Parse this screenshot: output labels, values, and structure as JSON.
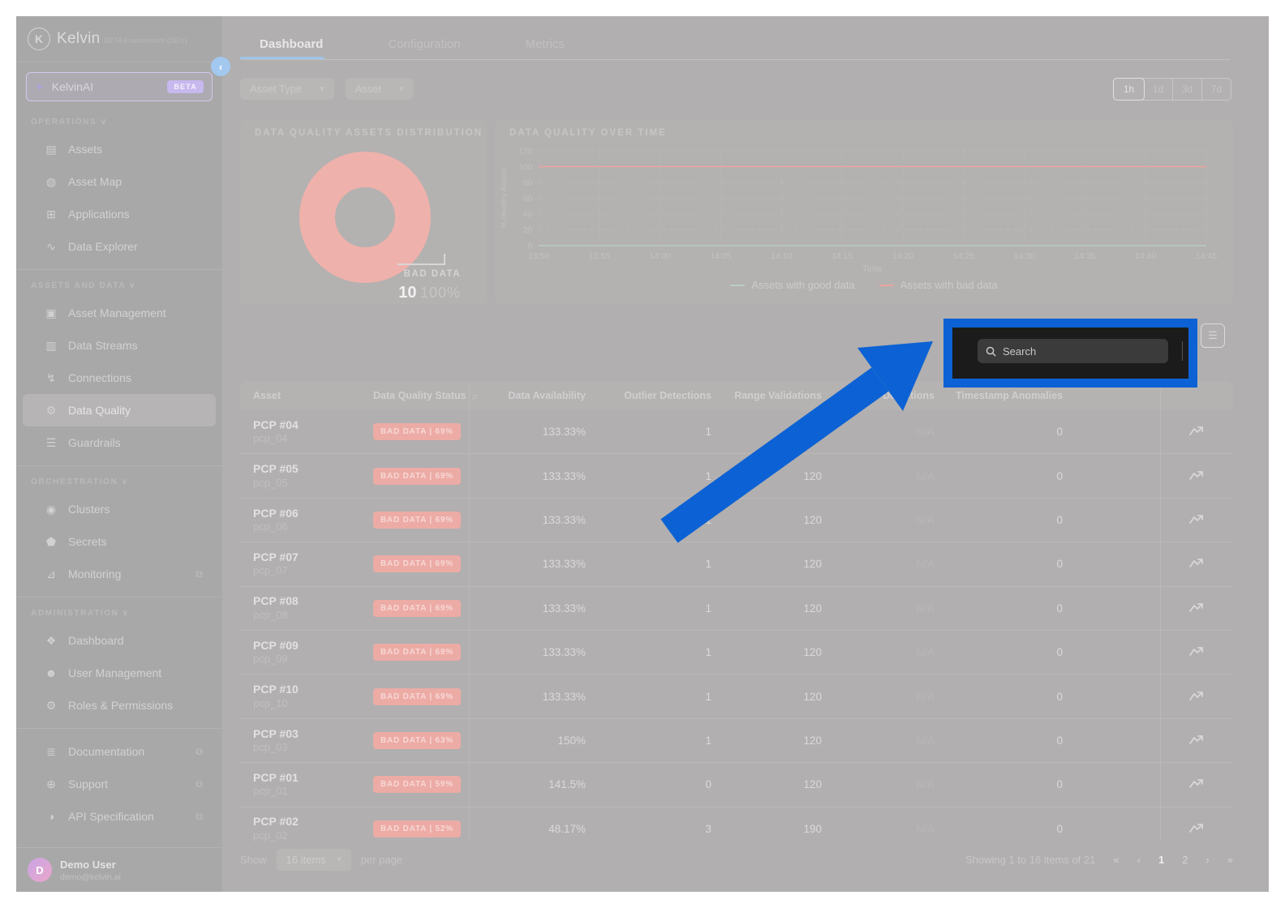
{
  "colors": {
    "annotation_blue": "#0c62d4",
    "bad_data_pink": "#efb1ab",
    "good_data_green": "#b8cec3",
    "bad_line_red": "#e9a59f",
    "beta_purple": "#c7b8ee",
    "tab_accent_blue": "#9fc4e8"
  },
  "icons": {
    "chevron-down-icon": "▾",
    "section-chevron-icon": "∨",
    "collapse-icon": "‹",
    "external-link-icon": "⧉",
    "sort-icon": "↓↑",
    "assets-icon": "▤",
    "asset-map-icon": "◍",
    "applications-icon": "⊞",
    "data-explorer-icon": "∿",
    "asset-management-icon": "▣",
    "data-streams-icon": "▥",
    "connections-icon": "↯",
    "data-quality-icon": "⚙",
    "guardrails-icon": "☰",
    "clusters-icon": "◉",
    "secrets-icon": "⬟",
    "monitoring-icon": "⊿",
    "dashboard-icon": "❖",
    "user-management-icon": "☻",
    "roles-permissions-icon": "⚙",
    "documentation-icon": "≣",
    "support-icon": "⊕",
    "api-specification-icon": "◑",
    "first-page-icon": "«",
    "prev-page-icon": "‹",
    "next-page-icon": "›",
    "last-page-icon": "»",
    "list-view-icon": "☰",
    "lines-view-icon": "≡"
  },
  "sidebar": {
    "logo_text": "Kelvin",
    "logo_initial": "K",
    "env_label": "BETA Environment (DEV)",
    "ai_item": {
      "label": "KelvinAI",
      "badge": "BETA",
      "icon": "sparkle-icon",
      "glyph": "✦"
    },
    "sections": [
      {
        "label": "OPERATIONS",
        "divided": false,
        "items": [
          {
            "label": "Assets",
            "icon": "assets-icon"
          },
          {
            "label": "Asset Map",
            "icon": "asset-map-icon"
          },
          {
            "label": "Applications",
            "icon": "applications-icon"
          },
          {
            "label": "Data Explorer",
            "icon": "data-explorer-icon"
          }
        ]
      },
      {
        "label": "ASSETS AND DATA",
        "divided": true,
        "items": [
          {
            "label": "Asset Management",
            "icon": "asset-management-icon"
          },
          {
            "label": "Data Streams",
            "icon": "data-streams-icon"
          },
          {
            "label": "Connections",
            "icon": "connections-icon"
          },
          {
            "label": "Data Quality",
            "icon": "data-quality-icon",
            "active": true
          },
          {
            "label": "Guardrails",
            "icon": "guardrails-icon"
          }
        ]
      },
      {
        "label": "ORCHESTRATION",
        "divided": true,
        "items": [
          {
            "label": "Clusters",
            "icon": "clusters-icon"
          },
          {
            "label": "Secrets",
            "icon": "secrets-icon"
          },
          {
            "label": "Monitoring",
            "icon": "monitoring-icon",
            "external": true
          }
        ]
      },
      {
        "label": "ADMINISTRATION",
        "divided": true,
        "items": [
          {
            "label": "Dashboard",
            "icon": "dashboard-icon"
          },
          {
            "label": "User Management",
            "icon": "user-management-icon"
          },
          {
            "label": "Roles & Permissions",
            "icon": "roles-permissions-icon"
          }
        ]
      },
      {
        "label": "",
        "divided": true,
        "items": [
          {
            "label": "Documentation",
            "icon": "documentation-icon",
            "external": true
          },
          {
            "label": "Support",
            "icon": "support-icon",
            "external": true
          },
          {
            "label": "API Specification",
            "icon": "api-specification-icon",
            "external": true
          }
        ]
      }
    ],
    "user": {
      "name": "Demo User",
      "email": "demo@kelvin.ai",
      "avatar_initial": "D"
    }
  },
  "header": {
    "tabs": [
      {
        "label": "Dashboard",
        "active": true
      },
      {
        "label": "Configuration",
        "active": false
      },
      {
        "label": "Metrics",
        "active": false
      }
    ],
    "filters": [
      {
        "label": "Asset Type"
      },
      {
        "label": "Asset"
      }
    ],
    "time_ranges": [
      {
        "label": "1h",
        "active": true
      },
      {
        "label": "1d",
        "active": false
      },
      {
        "label": "3d",
        "active": false
      },
      {
        "label": "7d",
        "active": false
      }
    ]
  },
  "distribution_card": {
    "title": "DATA QUALITY ASSETS DISTRIBUTION",
    "label": "BAD DATA",
    "value": "10",
    "percent": "100%"
  },
  "timeseries_card": {
    "title": "DATA QUALITY OVER TIME"
  },
  "chart_data": [
    {
      "type": "pie",
      "title": "DATA QUALITY ASSETS DISTRIBUTION",
      "slices": [
        {
          "label": "BAD DATA",
          "value": 10,
          "percent": 100,
          "color": "#efb1ab"
        }
      ]
    },
    {
      "type": "line",
      "title": "DATA QUALITY OVER TIME",
      "xlabel": "Time",
      "ylabel": "% Healthy Assets",
      "ylim": [
        0,
        120
      ],
      "yticks": [
        120,
        100,
        80,
        60,
        40,
        20,
        0
      ],
      "grid": true,
      "legend_position": "bottom",
      "x": [
        "13:50",
        "13:55",
        "14:00",
        "14:05",
        "14:10",
        "14:15",
        "14:20",
        "14:25",
        "14:30",
        "14:35",
        "14:40",
        "14:45"
      ],
      "series": [
        {
          "name": "Assets with good data",
          "color": "#b8cec3",
          "values": [
            0,
            0,
            0,
            0,
            0,
            0,
            0,
            0,
            0,
            0,
            0,
            0
          ]
        },
        {
          "name": "Assets with bad data",
          "color": "#e9a59f",
          "values": [
            100,
            100,
            100,
            100,
            100,
            100,
            100,
            100,
            100,
            100,
            100,
            100
          ]
        }
      ]
    }
  ],
  "toolbar": {
    "search_placeholder": "Search"
  },
  "table": {
    "headers": [
      "Asset",
      "Data Quality Status",
      "Data Availability",
      "Outlier Detections",
      "Range Validations",
      "Stale Detections",
      "Timestamp Anomalies"
    ],
    "sorted_header": "Data Quality Status",
    "rows": [
      {
        "name": "PCP #04",
        "id": "pcp_04",
        "status": "BAD DATA | 69%",
        "availability": "133.33%",
        "outliers": "1",
        "range": "120",
        "stale": "N/A",
        "timestamp": "0"
      },
      {
        "name": "PCP #05",
        "id": "pcp_05",
        "status": "BAD DATA | 69%",
        "availability": "133.33%",
        "outliers": "1",
        "range": "120",
        "stale": "N/A",
        "timestamp": "0"
      },
      {
        "name": "PCP #06",
        "id": "pcp_06",
        "status": "BAD DATA | 69%",
        "availability": "133.33%",
        "outliers": "1",
        "range": "120",
        "stale": "N/A",
        "timestamp": "0"
      },
      {
        "name": "PCP #07",
        "id": "pcp_07",
        "status": "BAD DATA | 69%",
        "availability": "133.33%",
        "outliers": "1",
        "range": "120",
        "stale": "N/A",
        "timestamp": "0"
      },
      {
        "name": "PCP #08",
        "id": "pcp_08",
        "status": "BAD DATA | 69%",
        "availability": "133.33%",
        "outliers": "1",
        "range": "120",
        "stale": "N/A",
        "timestamp": "0"
      },
      {
        "name": "PCP #09",
        "id": "pcp_09",
        "status": "BAD DATA | 69%",
        "availability": "133.33%",
        "outliers": "1",
        "range": "120",
        "stale": "N/A",
        "timestamp": "0"
      },
      {
        "name": "PCP #10",
        "id": "pcp_10",
        "status": "BAD DATA | 69%",
        "availability": "133.33%",
        "outliers": "1",
        "range": "120",
        "stale": "N/A",
        "timestamp": "0"
      },
      {
        "name": "PCP #03",
        "id": "pcp_03",
        "status": "BAD DATA | 63%",
        "availability": "150%",
        "outliers": "1",
        "range": "120",
        "stale": "N/A",
        "timestamp": "0"
      },
      {
        "name": "PCP #01",
        "id": "pcp_01",
        "status": "BAD DATA | 59%",
        "availability": "141.5%",
        "outliers": "0",
        "range": "120",
        "stale": "N/A",
        "timestamp": "0"
      },
      {
        "name": "PCP #02",
        "id": "pcp_02",
        "status": "BAD DATA | 52%",
        "availability": "48.17%",
        "outliers": "3",
        "range": "190",
        "stale": "N/A",
        "timestamp": "0"
      }
    ]
  },
  "footer": {
    "show_label": "Show",
    "page_size": "16 items",
    "per_page_label": "per page",
    "summary": "Showing 1 to 16 items of 21",
    "pages": [
      "1",
      "2"
    ],
    "active_page": "1"
  }
}
